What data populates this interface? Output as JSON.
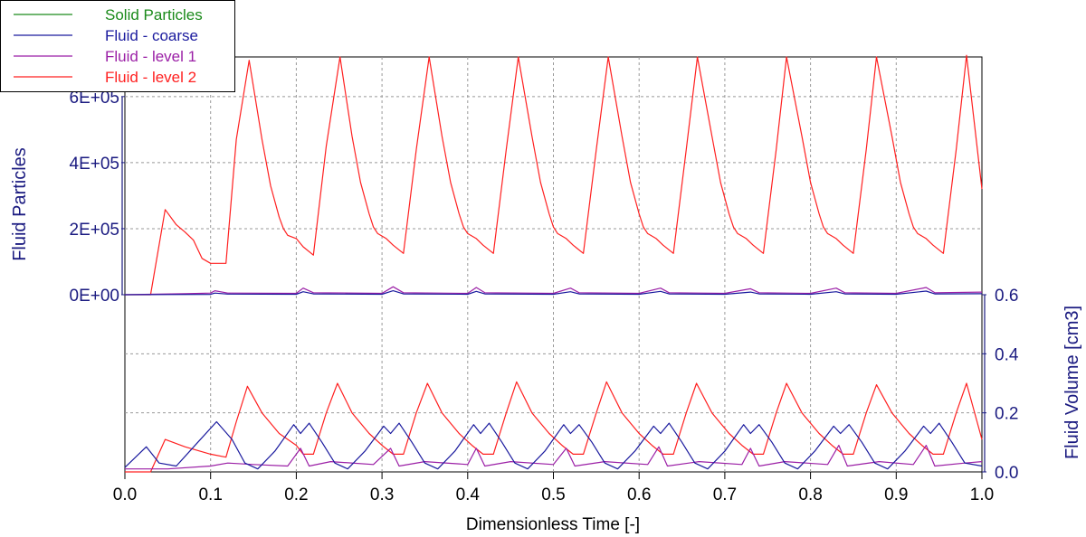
{
  "chart_data": {
    "type": "line",
    "xlabel": "Dimensionless Time [-]",
    "xlim": [
      0.0,
      1.0
    ],
    "x_ticks": [
      "0.0",
      "0.1",
      "0.2",
      "0.3",
      "0.4",
      "0.5",
      "0.6",
      "0.7",
      "0.8",
      "0.9",
      "1.0"
    ],
    "grid": true,
    "legend": {
      "position": "top-left",
      "entries": [
        {
          "name": "Solid Particles",
          "color": "#1a8a1a"
        },
        {
          "name": "Fluid - coarse",
          "color": "#1a1a9e"
        },
        {
          "name": "Fluid - level 1",
          "color": "#9b1fa6"
        },
        {
          "name": "Fluid - level 2",
          "color": "#ff2020"
        }
      ]
    },
    "panels": [
      {
        "id": "particles",
        "ylabel": "Fluid Particles",
        "ylim": [
          0,
          720000
        ],
        "y_ticks": [
          "0E+00",
          "2E+05",
          "4E+05",
          "6E+05"
        ],
        "y_tick_values": [
          0,
          200000,
          400000,
          600000
        ],
        "series": [
          {
            "name": "Fluid - level 2",
            "color": "#ff2020",
            "x": [
              0.0,
              0.03,
              0.047,
              0.06,
              0.07,
              0.08,
              0.09,
              0.1,
              0.118,
              0.13,
              0.145,
              0.16,
              0.17,
              0.18,
              0.185,
              0.19,
              0.2,
              0.208,
              0.22,
              0.235,
              0.251,
              0.265,
              0.275,
              0.285,
              0.29,
              0.295,
              0.305,
              0.313,
              0.325,
              0.34,
              0.355,
              0.37,
              0.38,
              0.39,
              0.395,
              0.4,
              0.41,
              0.418,
              0.43,
              0.445,
              0.459,
              0.475,
              0.485,
              0.495,
              0.5,
              0.505,
              0.515,
              0.523,
              0.535,
              0.55,
              0.564,
              0.58,
              0.59,
              0.6,
              0.605,
              0.61,
              0.62,
              0.628,
              0.64,
              0.655,
              0.668,
              0.685,
              0.695,
              0.705,
              0.71,
              0.715,
              0.725,
              0.733,
              0.745,
              0.76,
              0.772,
              0.79,
              0.8,
              0.81,
              0.815,
              0.82,
              0.83,
              0.838,
              0.85,
              0.865,
              0.877,
              0.895,
              0.905,
              0.915,
              0.92,
              0.925,
              0.935,
              0.943,
              0.955,
              0.97,
              0.982,
              1.0
            ],
            "y": [
              0,
              0,
              258000,
              212000,
              190000,
              165000,
              110000,
              95000,
              95000,
              470000,
              710000,
              470000,
              330000,
              235000,
              200000,
              180000,
              170000,
              145000,
              120000,
              450000,
              720000,
              480000,
              340000,
              245000,
              205000,
              185000,
              170000,
              150000,
              125000,
              440000,
              720000,
              480000,
              340000,
              245000,
              205000,
              185000,
              170000,
              150000,
              125000,
              440000,
              720000,
              480000,
              340000,
              245000,
              205000,
              185000,
              170000,
              150000,
              125000,
              440000,
              720000,
              480000,
              340000,
              245000,
              205000,
              185000,
              170000,
              150000,
              125000,
              440000,
              720000,
              480000,
              340000,
              245000,
              205000,
              185000,
              170000,
              150000,
              125000,
              440000,
              720000,
              480000,
              340000,
              245000,
              205000,
              185000,
              170000,
              150000,
              125000,
              440000,
              720000,
              480000,
              340000,
              245000,
              205000,
              185000,
              170000,
              150000,
              125000,
              440000,
              725000,
              320000
            ]
          },
          {
            "name": "Fluid - level 1",
            "color": "#9b1fa6",
            "x": [
              0.0,
              0.03,
              0.07,
              0.1,
              0.105,
              0.12,
              0.2,
              0.208,
              0.22,
              0.3,
              0.313,
              0.325,
              0.4,
              0.41,
              0.42,
              0.5,
              0.52,
              0.53,
              0.6,
              0.625,
              0.635,
              0.7,
              0.73,
              0.74,
              0.8,
              0.83,
              0.84,
              0.9,
              0.935,
              0.945,
              1.0
            ],
            "y": [
              0,
              1500,
              3000,
              5000,
              12000,
              5000,
              4000,
              20000,
              6000,
              4000,
              24000,
              6000,
              4000,
              22000,
              6000,
              4000,
              20000,
              6000,
              4000,
              20000,
              6000,
              4000,
              18000,
              6000,
              4000,
              20000,
              6000,
              4000,
              22000,
              6000,
              8000
            ]
          },
          {
            "name": "Fluid - coarse",
            "color": "#1a1a9e",
            "x": [
              0.0,
              0.05,
              0.1,
              0.105,
              0.12,
              0.2,
              0.208,
              0.22,
              0.3,
              0.313,
              0.325,
              0.4,
              0.41,
              0.42,
              0.5,
              0.52,
              0.53,
              0.6,
              0.625,
              0.635,
              0.7,
              0.73,
              0.74,
              0.8,
              0.83,
              0.84,
              0.9,
              0.935,
              0.945,
              1.0
            ],
            "y": [
              0,
              500,
              1000,
              5000,
              2000,
              1500,
              9000,
              2500,
              1500,
              12000,
              2500,
              1500,
              10000,
              2500,
              1500,
              9000,
              2500,
              1500,
              10000,
              2500,
              1500,
              8000,
              2500,
              1500,
              9000,
              2500,
              1500,
              11000,
              2500,
              3000
            ]
          }
        ]
      },
      {
        "id": "volume",
        "ylabel": "Fluid Volume [cm3]",
        "ylim": [
          0.0,
          0.6
        ],
        "y_ticks": [
          "0.0",
          "0.2",
          "0.4",
          "0.6"
        ],
        "y_tick_values": [
          0.0,
          0.2,
          0.4,
          0.6
        ],
        "series": [
          {
            "name": "Fluid - level 2",
            "color": "#ff2020",
            "x": [
              0.0,
              0.03,
              0.047,
              0.07,
              0.1,
              0.118,
              0.13,
              0.143,
              0.16,
              0.18,
              0.2,
              0.208,
              0.22,
              0.235,
              0.248,
              0.265,
              0.285,
              0.3,
              0.313,
              0.325,
              0.34,
              0.353,
              0.37,
              0.39,
              0.405,
              0.418,
              0.43,
              0.445,
              0.457,
              0.475,
              0.495,
              0.51,
              0.523,
              0.535,
              0.55,
              0.562,
              0.58,
              0.6,
              0.615,
              0.628,
              0.64,
              0.655,
              0.667,
              0.685,
              0.705,
              0.72,
              0.733,
              0.745,
              0.76,
              0.772,
              0.79,
              0.81,
              0.825,
              0.838,
              0.85,
              0.865,
              0.877,
              0.895,
              0.915,
              0.93,
              0.943,
              0.955,
              0.97,
              0.982,
              1.0
            ],
            "y": [
              0,
              0,
              0.11,
              0.085,
              0.06,
              0.05,
              0.17,
              0.29,
              0.2,
              0.13,
              0.09,
              0.06,
              0.06,
              0.2,
              0.3,
              0.2,
              0.13,
              0.09,
              0.06,
              0.06,
              0.2,
              0.3,
              0.2,
              0.13,
              0.09,
              0.06,
              0.06,
              0.2,
              0.305,
              0.2,
              0.13,
              0.09,
              0.06,
              0.06,
              0.2,
              0.305,
              0.2,
              0.13,
              0.09,
              0.06,
              0.06,
              0.2,
              0.3,
              0.2,
              0.13,
              0.09,
              0.06,
              0.06,
              0.2,
              0.3,
              0.2,
              0.13,
              0.09,
              0.06,
              0.06,
              0.2,
              0.295,
              0.2,
              0.13,
              0.09,
              0.06,
              0.06,
              0.2,
              0.3,
              0.11
            ]
          },
          {
            "name": "Fluid - level 1",
            "color": "#9b1fa6",
            "x": [
              0.0,
              0.05,
              0.1,
              0.12,
              0.15,
              0.19,
              0.205,
              0.215,
              0.24,
              0.29,
              0.31,
              0.32,
              0.35,
              0.4,
              0.41,
              0.42,
              0.45,
              0.5,
              0.515,
              0.525,
              0.56,
              0.61,
              0.623,
              0.633,
              0.67,
              0.72,
              0.73,
              0.74,
              0.77,
              0.82,
              0.833,
              0.843,
              0.88,
              0.92,
              0.935,
              0.945,
              0.98,
              1.0
            ],
            "y": [
              0.01,
              0.01,
              0.02,
              0.03,
              0.025,
              0.02,
              0.08,
              0.02,
              0.035,
              0.025,
              0.08,
              0.02,
              0.035,
              0.025,
              0.08,
              0.02,
              0.035,
              0.025,
              0.08,
              0.02,
              0.035,
              0.025,
              0.085,
              0.02,
              0.035,
              0.025,
              0.08,
              0.02,
              0.035,
              0.025,
              0.09,
              0.02,
              0.035,
              0.025,
              0.09,
              0.02,
              0.03,
              0.035
            ]
          },
          {
            "name": "Fluid - coarse",
            "color": "#1a1a9e",
            "x": [
              0.0,
              0.025,
              0.04,
              0.06,
              0.085,
              0.107,
              0.125,
              0.14,
              0.155,
              0.175,
              0.197,
              0.205,
              0.215,
              0.23,
              0.245,
              0.26,
              0.28,
              0.302,
              0.31,
              0.32,
              0.335,
              0.35,
              0.365,
              0.385,
              0.407,
              0.415,
              0.425,
              0.44,
              0.455,
              0.47,
              0.49,
              0.512,
              0.52,
              0.53,
              0.545,
              0.56,
              0.575,
              0.595,
              0.617,
              0.625,
              0.635,
              0.65,
              0.665,
              0.68,
              0.7,
              0.722,
              0.73,
              0.74,
              0.755,
              0.77,
              0.785,
              0.805,
              0.827,
              0.835,
              0.845,
              0.86,
              0.875,
              0.89,
              0.91,
              0.932,
              0.94,
              0.95,
              0.965,
              0.98,
              1.0
            ],
            "y": [
              0.015,
              0.085,
              0.03,
              0.02,
              0.1,
              0.17,
              0.11,
              0.03,
              0.01,
              0.07,
              0.16,
              0.13,
              0.165,
              0.1,
              0.03,
              0.01,
              0.07,
              0.155,
              0.13,
              0.165,
              0.1,
              0.03,
              0.01,
              0.07,
              0.16,
              0.13,
              0.165,
              0.1,
              0.03,
              0.01,
              0.07,
              0.16,
              0.13,
              0.16,
              0.1,
              0.03,
              0.01,
              0.07,
              0.155,
              0.13,
              0.165,
              0.1,
              0.03,
              0.01,
              0.07,
              0.16,
              0.13,
              0.16,
              0.1,
              0.03,
              0.01,
              0.07,
              0.155,
              0.13,
              0.16,
              0.1,
              0.03,
              0.01,
              0.07,
              0.155,
              0.13,
              0.165,
              0.1,
              0.03,
              0.02
            ]
          }
        ]
      }
    ]
  }
}
